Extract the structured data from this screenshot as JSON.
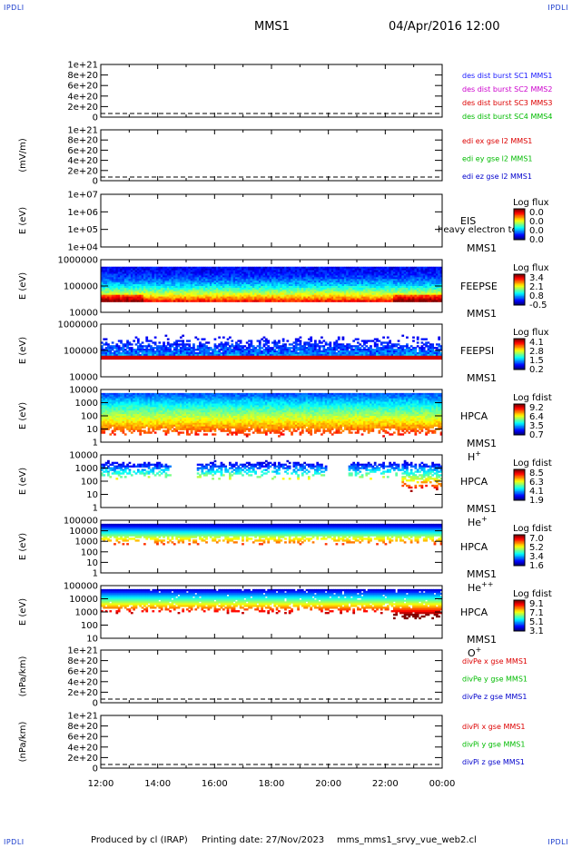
{
  "corners": {
    "tl": "IPDLI",
    "tr": "IPDLI",
    "bl": "IPDLI",
    "br": "IPDLI"
  },
  "header": {
    "spacecraft": "MMS1",
    "datetime": "04/Apr/2016 12:00"
  },
  "footer": {
    "produced_by": "Produced by cl (IRAP)",
    "printing_date": "Printing date: 27/Nov/2023",
    "script_name": "mms_mms1_srvy_vue_web2.cl"
  },
  "colors": {
    "mms1": "#1a1aff",
    "mms2": "#cc00cc",
    "mms3": "#dd0000",
    "mms4": "#00bb00",
    "x": "#dd0000",
    "y": "#00bb00",
    "z": "#0000cc"
  },
  "chart_data": [
    {
      "type": "line",
      "ylabel": "",
      "yticks": [
        "1e+21",
        "8e+20",
        "6e+20",
        "4e+20",
        "2e+20",
        "0"
      ],
      "ylim": [
        0,
        1e+21
      ],
      "legend": [
        {
          "name": "des dist burst SC1 MMS1",
          "color_key": "mms1"
        },
        {
          "name": "des dist burst SC2 MMS2",
          "color_key": "mms2"
        },
        {
          "name": "des dist burst SC3 MMS3",
          "color_key": "mms3"
        },
        {
          "name": "des dist burst SC4 MMS4",
          "color_key": "mms4"
        }
      ],
      "zero_line": true
    },
    {
      "type": "line",
      "ylabel": "(mV/m)",
      "yticks": [
        "1e+21",
        "8e+20",
        "6e+20",
        "4e+20",
        "2e+20",
        "0"
      ],
      "ylim": [
        0,
        1e+21
      ],
      "legend": [
        {
          "name": "edi ex gse l2 MMS1",
          "color_key": "x"
        },
        {
          "name": "edi ey gse l2 MMS1",
          "color_key": "y"
        },
        {
          "name": "edi ez gse l2 MMS1",
          "color_key": "z"
        }
      ],
      "zero_line": true
    },
    {
      "type": "heatmap",
      "ylabel": "E (eV)",
      "yscale": "log",
      "yticks": [
        "1e+07",
        "1e+06",
        "1e+05",
        "1e+04"
      ],
      "ylim": [
        10000.0,
        10000000.0
      ],
      "species": "EIS",
      "overlay_text": "heavy electron to",
      "sc": "MMS1",
      "cbar_title": "Log flux",
      "cbar_ticks": [
        "0.0",
        "0.0",
        "0.0",
        "0.0"
      ],
      "pattern": "empty"
    },
    {
      "type": "heatmap",
      "ylabel": "E (eV)",
      "yscale": "log",
      "yticks": [
        "1000000",
        "100000",
        "10000"
      ],
      "ylim": [
        10000.0,
        1000000.0
      ],
      "species": "FEEPSE",
      "sc": "MMS1",
      "cbar_title": "Log flux",
      "cbar_ticks": [
        "3.4",
        "2.1",
        "0.8",
        "-0.5"
      ],
      "pattern": "feepse"
    },
    {
      "type": "heatmap",
      "ylabel": "E (eV)",
      "yscale": "log",
      "yticks": [
        "1000000",
        "100000",
        "10000"
      ],
      "ylim": [
        10000.0,
        1000000.0
      ],
      "species": "FEEPSI",
      "sc": "MMS1",
      "cbar_title": "Log flux",
      "cbar_ticks": [
        "4.1",
        "2.8",
        "1.5",
        "0.2"
      ],
      "pattern": "feepsi"
    },
    {
      "type": "heatmap",
      "ylabel": "E (eV)",
      "yscale": "log",
      "yticks": [
        "10000",
        "1000",
        "100",
        "10",
        "1"
      ],
      "ylim": [
        1,
        10000.0
      ],
      "species": "HPCA",
      "sc": "MMS1",
      "ion": "H",
      "ion_sup": "+",
      "cbar_title": "Log fdist",
      "cbar_ticks": [
        "9.2",
        "6.4",
        "3.5",
        "0.7"
      ],
      "pattern": "hplus"
    },
    {
      "type": "heatmap",
      "ylabel": "E (eV)",
      "yscale": "log",
      "yticks": [
        "10000",
        "1000",
        "100",
        "10",
        "1"
      ],
      "ylim": [
        1,
        10000.0
      ],
      "species": "HPCA",
      "sc": "MMS1",
      "ion": "He",
      "ion_sup": "+",
      "cbar_title": "Log fdist",
      "cbar_ticks": [
        "8.5",
        "6.3",
        "4.1",
        "1.9"
      ],
      "pattern": "heplus"
    },
    {
      "type": "heatmap",
      "ylabel": "E (eV)",
      "yscale": "log",
      "yticks": [
        "100000",
        "10000",
        "1000",
        "100",
        "10",
        "1"
      ],
      "ylim": [
        1,
        100000.0
      ],
      "species": "HPCA",
      "sc": "MMS1",
      "ion": "He",
      "ion_sup": "++",
      "cbar_title": "Log fdist",
      "cbar_ticks": [
        "7.0",
        "5.2",
        "3.4",
        "1.6"
      ],
      "pattern": "heplusplus"
    },
    {
      "type": "heatmap",
      "ylabel": "E (eV)",
      "yscale": "log",
      "yticks": [
        "100000",
        "10000",
        "1000",
        "100",
        "10"
      ],
      "ylim": [
        10,
        100000.0
      ],
      "species": "HPCA",
      "sc": "MMS1",
      "ion": "O",
      "ion_sup": "+",
      "cbar_title": "Log fdist",
      "cbar_ticks": [
        "9.1",
        "7.1",
        "5.1",
        "3.1"
      ],
      "pattern": "oplus"
    },
    {
      "type": "line",
      "ylabel": "(nPa/km)",
      "yticks": [
        "1e+21",
        "8e+20",
        "6e+20",
        "4e+20",
        "2e+20",
        "0"
      ],
      "ylim": [
        0,
        1e+21
      ],
      "legend": [
        {
          "name": "divPe x gse MMS1",
          "color_key": "x"
        },
        {
          "name": "divPe y gse MMS1",
          "color_key": "y"
        },
        {
          "name": "divPe z gse MMS1",
          "color_key": "z"
        }
      ],
      "zero_line": true
    },
    {
      "type": "line",
      "ylabel": "(nPa/km)",
      "yticks": [
        "1e+21",
        "8e+20",
        "6e+20",
        "4e+20",
        "2e+20",
        "0"
      ],
      "ylim": [
        0,
        1e+21
      ],
      "legend": [
        {
          "name": "divPi x gse MMS1",
          "color_key": "x"
        },
        {
          "name": "divPi y gse MMS1",
          "color_key": "y"
        },
        {
          "name": "divPi z gse MMS1",
          "color_key": "z"
        }
      ],
      "zero_line": true
    }
  ],
  "time_axis": {
    "ticks": [
      "12:00",
      "14:00",
      "16:00",
      "18:00",
      "20:00",
      "22:00",
      "00:00"
    ]
  }
}
